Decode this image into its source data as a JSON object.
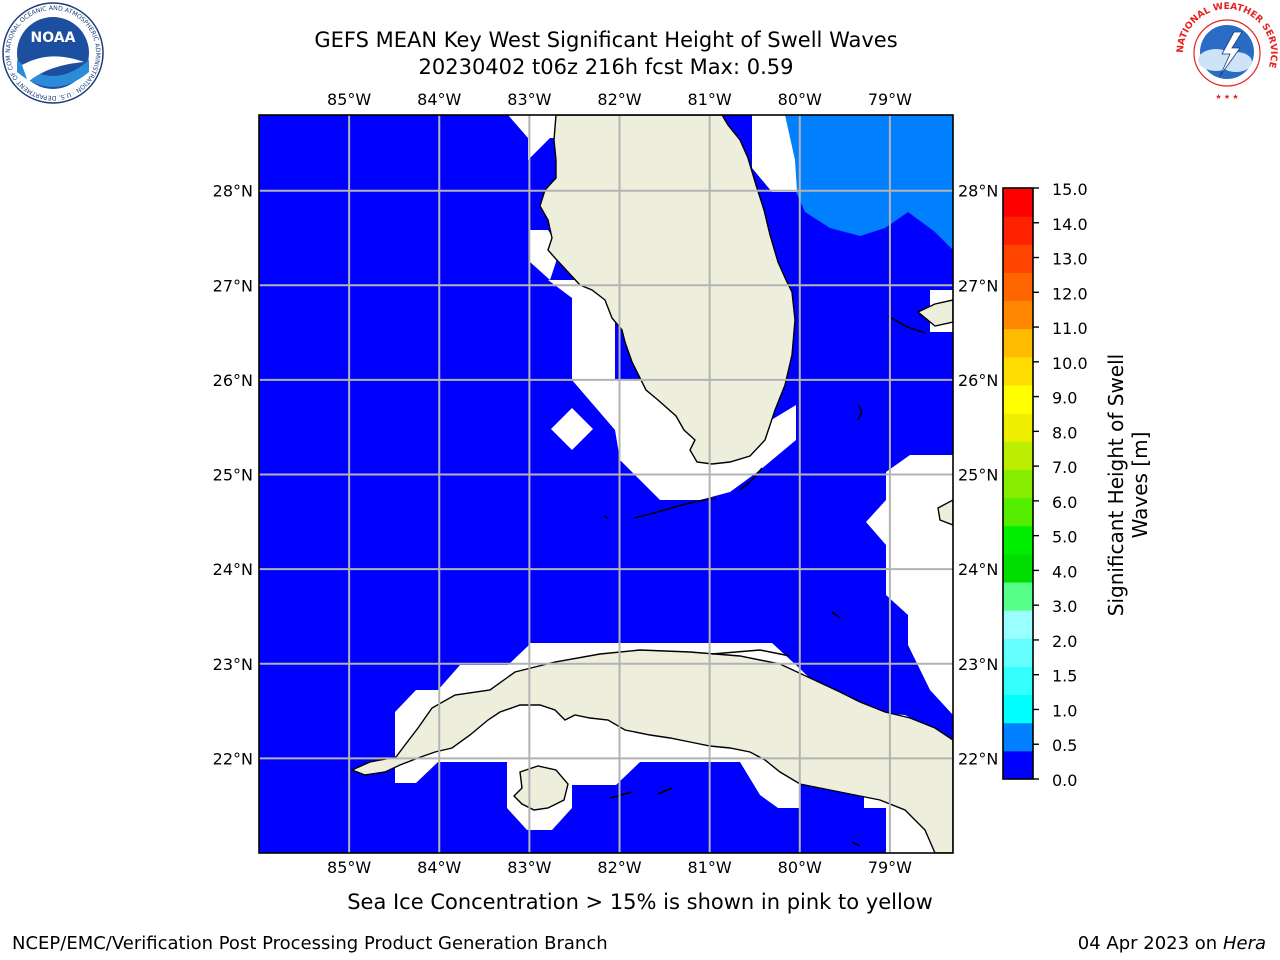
{
  "title": {
    "line1": "GEFS MEAN Key West Significant Height of Swell Waves",
    "line2": "20230402 t06z 216h fcst   Max: 0.59"
  },
  "logos": {
    "left": "NOAA",
    "left_ring_text": "NATIONAL OCEANIC AND ATMOSPHERIC ADMINISTRATION · U.S. DEPARTMENT OF COMMERCE",
    "right_ring_text": "NATIONAL WEATHER SERVICE"
  },
  "map": {
    "longitude_ticks": [
      "85°W",
      "84°W",
      "83°W",
      "82°W",
      "81°W",
      "80°W",
      "79°W"
    ],
    "latitude_ticks": [
      "28°N",
      "27°N",
      "26°N",
      "25°N",
      "24°N",
      "23°N",
      "22°N"
    ],
    "lon_range": [
      -86.0,
      -78.3
    ],
    "lat_range": [
      21.0,
      28.8
    ],
    "ocean_color": "#0000ff",
    "land_color": "#eeeedd",
    "grid_color": "#b3b3b3",
    "max_value": 0.59
  },
  "colorbar": {
    "title": "Significant Height of Swell Waves [m]",
    "ticks": [
      "0.0",
      "0.5",
      "1.0",
      "1.5",
      "2.0",
      "3.0",
      "4.0",
      "5.0",
      "6.0",
      "7.0",
      "8.0",
      "9.0",
      "10.0",
      "11.0",
      "12.0",
      "13.0",
      "14.0",
      "15.0"
    ],
    "colors": [
      "#0000ff",
      "#0080ff",
      "#00ffff",
      "#33ffff",
      "#66ffff",
      "#99ffff",
      "#55ff88",
      "#00dd00",
      "#00ee00",
      "#55ee00",
      "#88ee00",
      "#bbee00",
      "#eeee00",
      "#ffff00",
      "#ffdd00",
      "#ffbb00",
      "#ff8800",
      "#ff6600",
      "#ff4400",
      "#ff2200",
      "#ff0000"
    ]
  },
  "caption": "Sea Ice Concentration > 15% is shown in pink to yellow",
  "footer": {
    "left": "NCEP/EMC/Verification Post Processing Product Generation Branch",
    "date": "04 Apr 2023 on ",
    "host": "Hera"
  }
}
